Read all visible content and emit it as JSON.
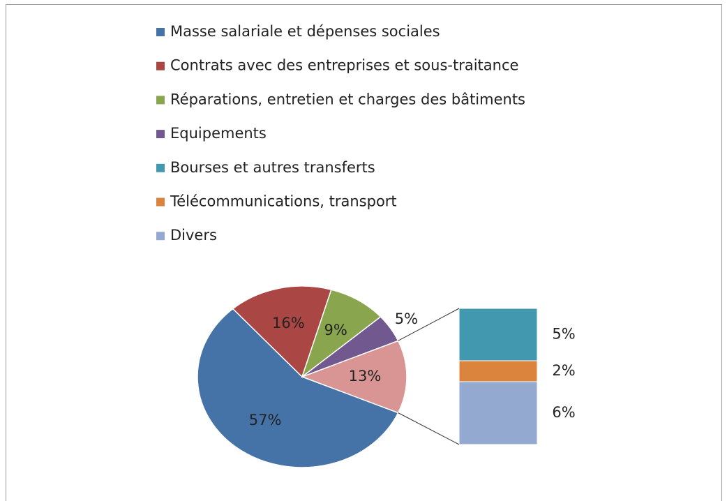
{
  "chart_data": {
    "type": "bar-of-pie",
    "categories": [
      "Masse salariale et dépenses sociales",
      "Contrats avec des entreprises et sous-traitance",
      "Réparations, entretien et charges des bâtiments",
      "Equipements"
    ],
    "values": [
      57,
      16,
      9,
      5
    ],
    "value_labels": [
      "57%",
      "16%",
      "9%",
      "5%"
    ],
    "colors": [
      "#4572a7",
      "#aa4643",
      "#89a54e",
      "#71588f"
    ],
    "other": {
      "value": 13,
      "value_label": "13%",
      "color": "#d99594",
      "categories": [
        "Bourses et autres transferts",
        "Télécommunications, transport",
        "Divers"
      ],
      "values": [
        5,
        2,
        6
      ],
      "value_labels": [
        "5%",
        "2%",
        "6%"
      ],
      "colors": [
        "#4198af",
        "#db843d",
        "#93a9cf"
      ]
    }
  }
}
